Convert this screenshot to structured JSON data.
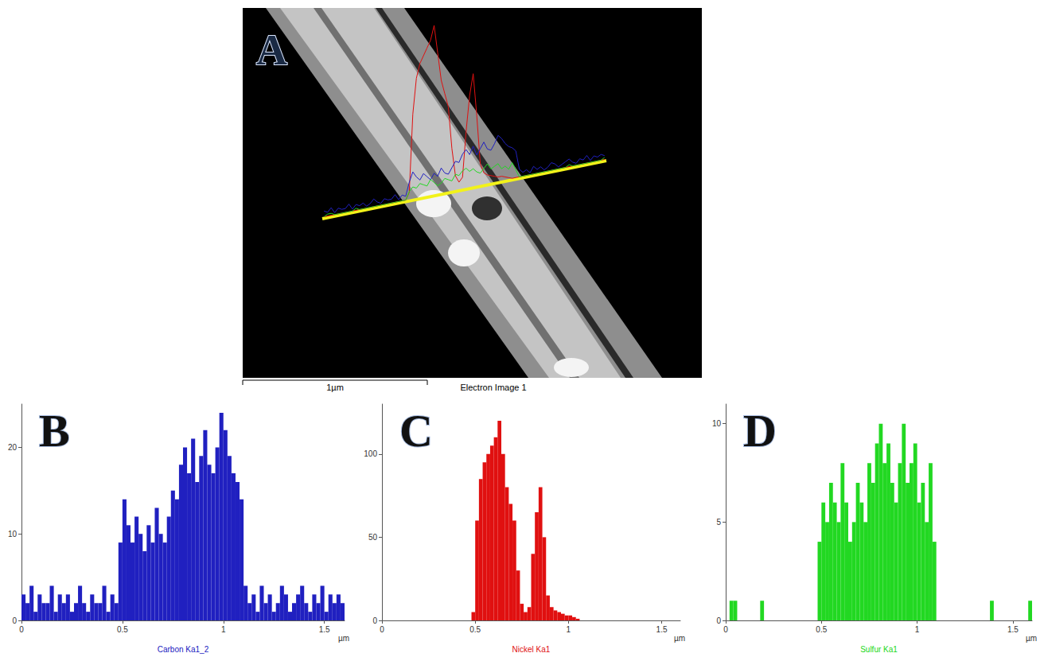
{
  "image": {
    "panel": "A",
    "scale_bar": "1µm",
    "caption": "Electron Image 1"
  },
  "chart_data": [
    {
      "type": "histogram",
      "title": "B",
      "caption": "Carbon Ka1_2",
      "xlabel": "µm",
      "color": "#2020c0",
      "bins": [
        0,
        0.02,
        0.04,
        0.06,
        0.08,
        0.1,
        0.12,
        0.14,
        0.16,
        0.18,
        0.2,
        0.22,
        0.24,
        0.26,
        0.28,
        0.3,
        0.32,
        0.34,
        0.36,
        0.38,
        0.4,
        0.42,
        0.44,
        0.46,
        0.48,
        0.5,
        0.52,
        0.54,
        0.56,
        0.58,
        0.6,
        0.62,
        0.64,
        0.66,
        0.68,
        0.7,
        0.72,
        0.74,
        0.76,
        0.78,
        0.8,
        0.82,
        0.84,
        0.86,
        0.88,
        0.9,
        0.92,
        0.94,
        0.96,
        0.98,
        1,
        1.02,
        1.04,
        1.06,
        1.08,
        1.1,
        1.12,
        1.14,
        1.16,
        1.18,
        1.2,
        1.22,
        1.24,
        1.26,
        1.28,
        1.3,
        1.32,
        1.34,
        1.36,
        1.38,
        1.4,
        1.42,
        1.44,
        1.46,
        1.48,
        1.5,
        1.52,
        1.54,
        1.56,
        1.58,
        1.6
      ],
      "values": [
        3,
        2,
        4,
        1,
        3,
        2,
        2,
        4,
        1,
        3,
        2,
        3,
        1,
        2,
        4,
        2,
        1,
        3,
        2,
        2,
        4,
        1,
        3,
        2,
        9,
        14,
        11,
        9,
        12,
        10,
        8,
        11,
        9,
        13,
        10,
        9,
        12,
        15,
        14,
        18,
        20,
        17,
        21,
        16,
        19,
        22,
        18,
        17,
        20,
        24,
        22,
        19,
        17,
        16,
        14,
        4,
        2,
        3,
        1,
        4,
        2,
        3,
        1,
        2,
        4,
        3,
        1,
        2,
        3,
        4,
        2,
        1,
        3,
        2,
        4,
        1,
        3,
        2,
        3,
        2
      ],
      "xlim": [
        0,
        1.6
      ],
      "ylim": [
        0,
        25
      ],
      "xticks": [
        0,
        0.5,
        1,
        1.5
      ],
      "yticks": [
        0,
        10,
        20
      ],
      "grid": false
    },
    {
      "type": "histogram",
      "title": "C",
      "caption": "Nickel Ka1",
      "xlabel": "µm",
      "color": "#e01010",
      "bins": [
        0,
        0.02,
        0.04,
        0.06,
        0.08,
        0.1,
        0.12,
        0.14,
        0.16,
        0.18,
        0.2,
        0.22,
        0.24,
        0.26,
        0.28,
        0.3,
        0.32,
        0.34,
        0.36,
        0.38,
        0.4,
        0.42,
        0.44,
        0.46,
        0.48,
        0.5,
        0.52,
        0.54,
        0.56,
        0.58,
        0.6,
        0.62,
        0.64,
        0.66,
        0.68,
        0.7,
        0.72,
        0.74,
        0.76,
        0.78,
        0.8,
        0.82,
        0.84,
        0.86,
        0.88,
        0.9,
        0.92,
        0.94,
        0.96,
        0.98,
        1,
        1.02,
        1.04,
        1.06,
        1.08,
        1.1,
        1.12,
        1.14,
        1.16,
        1.18,
        1.2,
        1.22,
        1.24,
        1.26,
        1.28,
        1.3,
        1.32,
        1.34,
        1.36,
        1.38,
        1.4,
        1.42,
        1.44,
        1.46,
        1.48,
        1.5,
        1.52,
        1.54,
        1.56,
        1.58,
        1.6
      ],
      "values": [
        0,
        0,
        0,
        0,
        0,
        0,
        0,
        0,
        0,
        0,
        0,
        0,
        0,
        0,
        0,
        0,
        0,
        0,
        0,
        0,
        0,
        0,
        0,
        0,
        5,
        60,
        85,
        95,
        100,
        105,
        110,
        120,
        100,
        80,
        70,
        60,
        30,
        10,
        5,
        8,
        40,
        65,
        80,
        50,
        15,
        8,
        6,
        5,
        4,
        3,
        3,
        2,
        1,
        0,
        0,
        0,
        0,
        0,
        0,
        0,
        0,
        0,
        0,
        0,
        0,
        0,
        0,
        0,
        0,
        0,
        0,
        0,
        0,
        0,
        0,
        0,
        0,
        0,
        0,
        0
      ],
      "xlim": [
        0,
        1.6
      ],
      "ylim": [
        0,
        130
      ],
      "xticks": [
        0,
        0.5,
        1,
        1.5
      ],
      "yticks": [
        0,
        50,
        100
      ],
      "grid": false
    },
    {
      "type": "histogram",
      "title": "D",
      "caption": "Sulfur Ka1",
      "xlabel": "µm",
      "color": "#22d822",
      "bins": [
        0,
        0.02,
        0.04,
        0.06,
        0.08,
        0.1,
        0.12,
        0.14,
        0.16,
        0.18,
        0.2,
        0.22,
        0.24,
        0.26,
        0.28,
        0.3,
        0.32,
        0.34,
        0.36,
        0.38,
        0.4,
        0.42,
        0.44,
        0.46,
        0.48,
        0.5,
        0.52,
        0.54,
        0.56,
        0.58,
        0.6,
        0.62,
        0.64,
        0.66,
        0.68,
        0.7,
        0.72,
        0.74,
        0.76,
        0.78,
        0.8,
        0.82,
        0.84,
        0.86,
        0.88,
        0.9,
        0.92,
        0.94,
        0.96,
        0.98,
        1,
        1.02,
        1.04,
        1.06,
        1.08,
        1.1,
        1.12,
        1.14,
        1.16,
        1.18,
        1.2,
        1.22,
        1.24,
        1.26,
        1.28,
        1.3,
        1.32,
        1.34,
        1.36,
        1.38,
        1.4,
        1.42,
        1.44,
        1.46,
        1.48,
        1.5,
        1.52,
        1.54,
        1.56,
        1.58,
        1.6
      ],
      "values": [
        0,
        1,
        1,
        0,
        0,
        0,
        0,
        0,
        0,
        1,
        0,
        0,
        0,
        0,
        0,
        0,
        0,
        0,
        0,
        0,
        0,
        0,
        0,
        0,
        4,
        6,
        5,
        7,
        6,
        5,
        8,
        6,
        4,
        5,
        7,
        6,
        5,
        8,
        7,
        9,
        10,
        8,
        9,
        7,
        6,
        8,
        10,
        7,
        8,
        9,
        6,
        7,
        5,
        8,
        4,
        0,
        0,
        0,
        0,
        0,
        0,
        0,
        0,
        0,
        0,
        0,
        0,
        0,
        0,
        1,
        0,
        0,
        0,
        0,
        0,
        0,
        0,
        0,
        0,
        1
      ],
      "xlim": [
        0,
        1.6
      ],
      "ylim": [
        0,
        11
      ],
      "xticks": [
        0,
        0.5,
        1,
        1.5
      ],
      "yticks": [
        0,
        5,
        10
      ],
      "grid": false
    }
  ]
}
